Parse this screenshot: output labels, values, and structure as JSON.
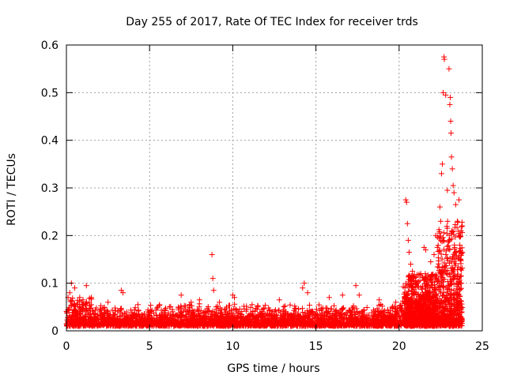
{
  "chart_data": {
    "type": "scatter",
    "title": "Day 255 of 2017, Rate Of TEC Index for receiver trds",
    "xlabel": "GPS time / hours",
    "ylabel": "ROTI / TECUs",
    "xlim": [
      0,
      25
    ],
    "ylim": [
      0,
      0.6
    ],
    "x_ticks": [
      "0",
      "5",
      "10",
      "15",
      "20",
      "25"
    ],
    "y_ticks": [
      "0",
      "0.1",
      "0.2",
      "0.3",
      "0.4",
      "0.5",
      "0.6"
    ],
    "x_tick_values": [
      0,
      5,
      10,
      15,
      20,
      25
    ],
    "y_tick_values": [
      0,
      0.1,
      0.2,
      0.3,
      0.4,
      0.5,
      0.6
    ],
    "grid": true,
    "marker": "+",
    "color": "#ff0000",
    "series": [
      {
        "name": "ROTI",
        "points": [
          [
            0.1,
            0.07
          ],
          [
            0.2,
            0.08
          ],
          [
            0.3,
            0.1
          ],
          [
            0.5,
            0.09
          ],
          [
            0.8,
            0.07
          ],
          [
            1.0,
            0.065
          ],
          [
            1.2,
            0.095
          ],
          [
            1.5,
            0.07
          ],
          [
            2.5,
            0.06
          ],
          [
            3.3,
            0.085
          ],
          [
            3.4,
            0.08
          ],
          [
            4.3,
            0.055
          ],
          [
            5.5,
            0.05
          ],
          [
            6.9,
            0.075
          ],
          [
            7.5,
            0.06
          ],
          [
            8.0,
            0.065
          ],
          [
            8.75,
            0.16
          ],
          [
            8.8,
            0.11
          ],
          [
            8.85,
            0.085
          ],
          [
            9.2,
            0.06
          ],
          [
            10.0,
            0.075
          ],
          [
            10.1,
            0.07
          ],
          [
            11.5,
            0.05
          ],
          [
            12.8,
            0.065
          ],
          [
            14.2,
            0.09
          ],
          [
            14.3,
            0.1
          ],
          [
            14.5,
            0.08
          ],
          [
            15.8,
            0.07
          ],
          [
            16.6,
            0.075
          ],
          [
            17.4,
            0.095
          ],
          [
            17.6,
            0.075
          ],
          [
            18.8,
            0.065
          ],
          [
            19.8,
            0.06
          ],
          [
            20.4,
            0.275
          ],
          [
            20.45,
            0.27
          ],
          [
            20.5,
            0.225
          ],
          [
            20.55,
            0.19
          ],
          [
            20.6,
            0.165
          ],
          [
            20.7,
            0.14
          ],
          [
            20.8,
            0.125
          ],
          [
            21.3,
            0.12
          ],
          [
            21.5,
            0.175
          ],
          [
            21.6,
            0.17
          ],
          [
            21.9,
            0.145
          ],
          [
            22.1,
            0.16
          ],
          [
            22.2,
            0.2
          ],
          [
            22.3,
            0.175
          ],
          [
            22.45,
            0.26
          ],
          [
            22.5,
            0.23
          ],
          [
            22.55,
            0.33
          ],
          [
            22.6,
            0.35
          ],
          [
            22.65,
            0.5
          ],
          [
            22.7,
            0.575
          ],
          [
            22.72,
            0.57
          ],
          [
            22.8,
            0.495
          ],
          [
            22.9,
            0.295
          ],
          [
            23.0,
            0.55
          ],
          [
            23.05,
            0.475
          ],
          [
            23.08,
            0.49
          ],
          [
            23.1,
            0.44
          ],
          [
            23.12,
            0.415
          ],
          [
            23.15,
            0.365
          ],
          [
            23.2,
            0.34
          ],
          [
            23.25,
            0.305
          ],
          [
            23.3,
            0.29
          ],
          [
            23.4,
            0.265
          ],
          [
            23.5,
            0.23
          ],
          [
            23.6,
            0.275
          ],
          [
            23.65,
            0.18
          ],
          [
            23.7,
            0.15
          ],
          [
            23.75,
            0.1
          ]
        ]
      }
    ]
  }
}
